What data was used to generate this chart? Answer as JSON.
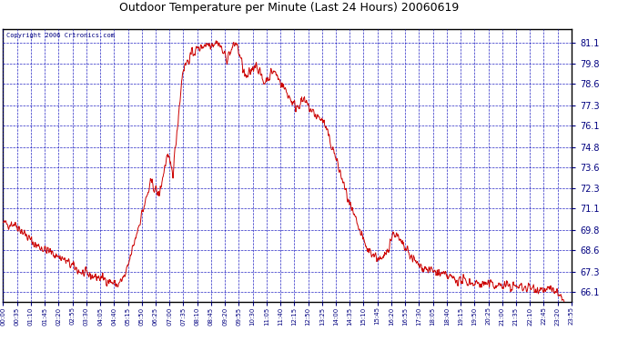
{
  "title": "Outdoor Temperature per Minute (Last 24 Hours) 20060619",
  "copyright": "Copyright 2006 Crtronics.com",
  "yticks": [
    66.1,
    67.3,
    68.6,
    69.8,
    71.1,
    72.3,
    73.6,
    74.8,
    76.1,
    77.3,
    78.6,
    79.8,
    81.1
  ],
  "ymin": 65.5,
  "ymax": 81.9,
  "line_color": "#cc0000",
  "bg_color": "#ffffff",
  "plot_bg_color": "#ffffff",
  "grid_color": "#0000bb",
  "title_color": "#000000",
  "border_color": "#000000",
  "tick_label_color": "#000080",
  "xtick_labels": [
    "00:00",
    "00:35",
    "01:10",
    "01:45",
    "02:20",
    "02:55",
    "03:30",
    "04:05",
    "04:40",
    "05:15",
    "05:50",
    "06:25",
    "07:00",
    "07:35",
    "08:10",
    "08:45",
    "09:20",
    "09:55",
    "10:30",
    "11:05",
    "11:40",
    "12:15",
    "12:50",
    "13:25",
    "14:00",
    "14:35",
    "15:10",
    "15:45",
    "16:20",
    "16:55",
    "17:30",
    "18:05",
    "18:40",
    "19:15",
    "19:50",
    "20:25",
    "21:00",
    "21:35",
    "22:10",
    "22:45",
    "23:20",
    "23:55"
  ]
}
